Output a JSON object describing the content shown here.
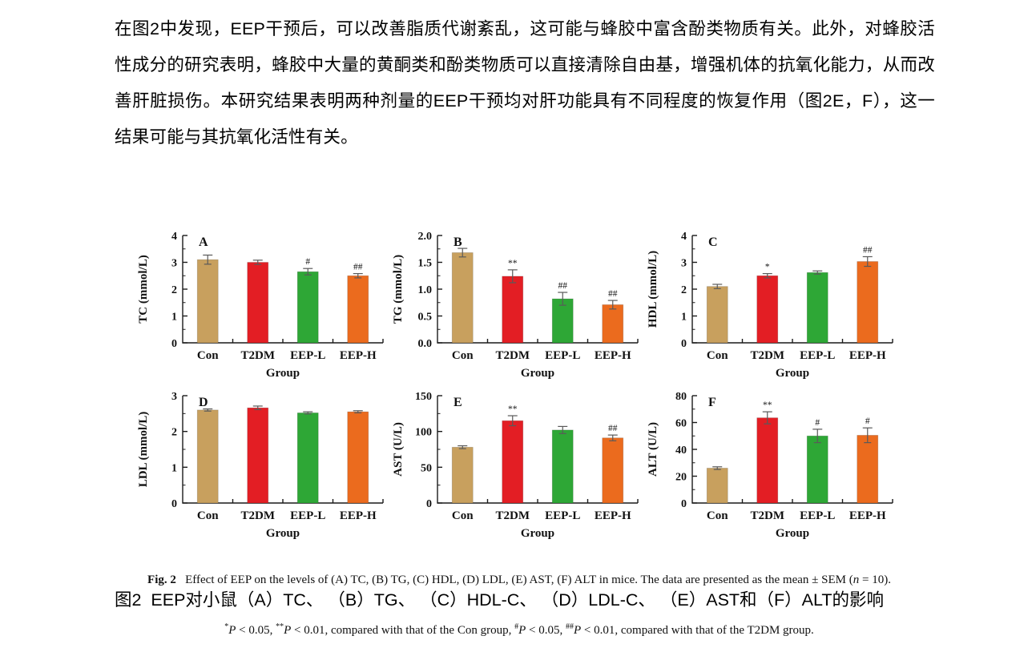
{
  "paragraph": "在图2中发现，EEP干预后，可以改善脂质代谢紊乱，这可能与蜂胶中富含酚类物质有关。此外，对蜂胶活性成分的研究表明，蜂胶中大量的黄酮类和酚类物质可以直接清除自由基，增强机体的抗氧化能力，从而改善肝脏损伤。本研究结果表明两种剂量的EEP干预均对肝功能具有不同程度的恢复作用（图2E，F），这一结果可能与其抗氧化活性有关。",
  "caption_zh": "图2  EEP对小鼠（A）TC、 （B）TG、 （C）HDL-C、 （D）LDL-C、 （E）AST和（F）ALT的影响",
  "figure_caption": {
    "line1": [
      {
        "t": "Fig. 2",
        "b": true
      },
      {
        "t": "   Effect of EEP on the levels of (A) TC, (B) TG, (C) HDL, (D) LDL, (E) AST, (F) ALT in mice. The data are presented as the mean ± SEM ("
      },
      {
        "t": "n",
        "i": true
      },
      {
        "t": " = 10)."
      }
    ],
    "line2": [
      {
        "t": "*",
        "sup": true
      },
      {
        "t": "P",
        "i": true
      },
      {
        "t": " < 0.05, "
      },
      {
        "t": "**",
        "sup": true
      },
      {
        "t": "P",
        "i": true
      },
      {
        "t": " < 0.01, compared with that of the Con group, "
      },
      {
        "t": "#",
        "sup": true
      },
      {
        "t": "P",
        "i": true
      },
      {
        "t": " < 0.05, "
      },
      {
        "t": "##",
        "sup": true
      },
      {
        "t": "P",
        "i": true
      },
      {
        "t": " < 0.01, compared with that of the T2DM group."
      }
    ]
  },
  "colors": {
    "bars": [
      "#C8A05E",
      "#E31E24",
      "#2EA736",
      "#EB6B1E"
    ],
    "error": "#5a5a5a",
    "annotation": "#555555",
    "axis": "#1a1a1a"
  },
  "chart_data": [
    {
      "type": "bar",
      "panel": "A",
      "ylabel": "TC (mmol/L)",
      "xlabel": "Group",
      "ylim": [
        0,
        4
      ],
      "yticks": [
        0,
        1,
        2,
        3,
        4
      ],
      "ytick_labels": [
        "0",
        "1",
        "2",
        "3",
        "4"
      ],
      "minor_step": 0.5,
      "categories": [
        "Con",
        "T2DM",
        "EEP-L",
        "EEP-H"
      ],
      "values": [
        3.1,
        3.0,
        2.65,
        2.5
      ],
      "errors": [
        0.17,
        0.08,
        0.12,
        0.08
      ],
      "annotations": [
        "",
        "",
        "#",
        "##"
      ],
      "grid": false,
      "legend": "none"
    },
    {
      "type": "bar",
      "panel": "B",
      "ylabel": "TG (mmol/L)",
      "xlabel": "Group",
      "ylim": [
        0,
        2
      ],
      "yticks": [
        0,
        0.5,
        1,
        1.5,
        2
      ],
      "ytick_labels": [
        "0.0",
        "0.5",
        "1.0",
        "1.5",
        "2.0"
      ],
      "minor_step": 0.25,
      "categories": [
        "Con",
        "T2DM",
        "EEP-L",
        "EEP-H"
      ],
      "values": [
        1.68,
        1.24,
        0.82,
        0.71
      ],
      "errors": [
        0.08,
        0.12,
        0.12,
        0.08
      ],
      "annotations": [
        "",
        "**",
        "##",
        "##"
      ],
      "grid": false,
      "legend": "none"
    },
    {
      "type": "bar",
      "panel": "C",
      "ylabel": "HDL (mmol/L)",
      "xlabel": "Group",
      "ylim": [
        0,
        4
      ],
      "yticks": [
        0,
        1,
        2,
        3,
        4
      ],
      "ytick_labels": [
        "0",
        "1",
        "2",
        "3",
        "4"
      ],
      "minor_step": 0.5,
      "categories": [
        "Con",
        "T2DM",
        "EEP-L",
        "EEP-H"
      ],
      "values": [
        2.1,
        2.5,
        2.62,
        3.03
      ],
      "errors": [
        0.08,
        0.08,
        0.06,
        0.18
      ],
      "annotations": [
        "",
        "*",
        "",
        "##"
      ],
      "grid": false,
      "legend": "none"
    },
    {
      "type": "bar",
      "panel": "D",
      "ylabel": "LDL (mmol/L)",
      "xlabel": "Group",
      "ylim": [
        0,
        3
      ],
      "yticks": [
        0,
        1,
        2,
        3
      ],
      "ytick_labels": [
        "0",
        "1",
        "2",
        "3"
      ],
      "minor_step": 0.5,
      "categories": [
        "Con",
        "T2DM",
        "EEP-L",
        "EEP-H"
      ],
      "values": [
        2.6,
        2.66,
        2.52,
        2.55
      ],
      "errors": [
        0.03,
        0.05,
        0.03,
        0.03
      ],
      "annotations": [
        "",
        "",
        "",
        ""
      ],
      "grid": false,
      "legend": "none"
    },
    {
      "type": "bar",
      "panel": "E",
      "ylabel": "AST (U/L)",
      "xlabel": "Group",
      "ylim": [
        0,
        150
      ],
      "yticks": [
        0,
        50,
        100,
        150
      ],
      "ytick_labels": [
        "0",
        "50",
        "100",
        "150"
      ],
      "minor_step": 25,
      "categories": [
        "Con",
        "T2DM",
        "EEP-L",
        "EEP-H"
      ],
      "values": [
        78,
        115,
        102,
        91
      ],
      "errors": [
        2,
        7,
        5,
        4
      ],
      "annotations": [
        "",
        "**",
        "",
        "##"
      ],
      "grid": false,
      "legend": "none"
    },
    {
      "type": "bar",
      "panel": "F",
      "ylabel": "ALT (U/L)",
      "xlabel": "Group",
      "ylim": [
        0,
        80
      ],
      "yticks": [
        0,
        20,
        40,
        60,
        80
      ],
      "ytick_labels": [
        "0",
        "20",
        "40",
        "60",
        "80"
      ],
      "minor_step": 10,
      "categories": [
        "Con",
        "T2DM",
        "EEP-L",
        "EEP-H"
      ],
      "values": [
        26,
        63.5,
        50,
        50.5
      ],
      "errors": [
        1,
        4.5,
        5,
        5.5
      ],
      "annotations": [
        "",
        "**",
        "#",
        "#"
      ],
      "grid": false,
      "legend": "none"
    }
  ]
}
